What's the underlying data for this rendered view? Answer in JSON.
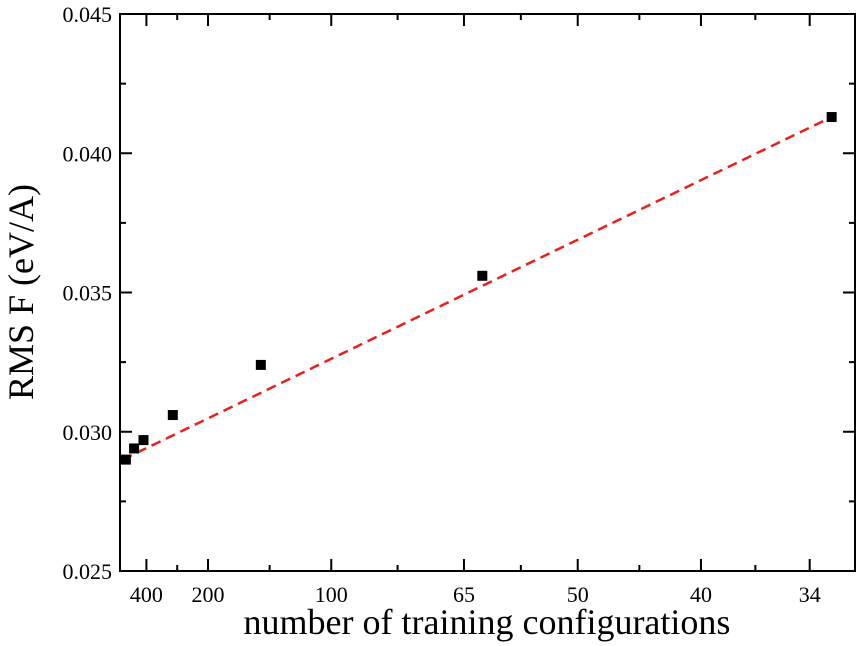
{
  "chart_data": {
    "type": "scatter",
    "xlabel": "number of training configurations",
    "ylabel": "RMS F (eV/A)",
    "x_scale": "reciprocal",
    "xlim": [
      700,
      32
    ],
    "ylim": [
      0.025,
      0.045
    ],
    "x_ticks": [
      400,
      200,
      100,
      65,
      50,
      40,
      34
    ],
    "y_ticks": [
      0.025,
      0.03,
      0.035,
      0.04,
      0.045
    ],
    "y_tick_labels": [
      "0.025",
      "0.030",
      "0.035",
      "0.040",
      "0.045"
    ],
    "grid": false,
    "series": [
      {
        "kind": "markers",
        "marker": "square",
        "color": "#000000",
        "x": [
          600,
          500,
          420,
          280,
          140,
          62,
          33
        ],
        "y": [
          0.029,
          0.0294,
          0.0297,
          0.0306,
          0.0324,
          0.0356,
          0.0413
        ]
      },
      {
        "kind": "fit-line",
        "style": "dashed",
        "color": "#e8201e",
        "x": [
          650,
          33
        ],
        "y": [
          0.029,
          0.0413
        ]
      }
    ]
  }
}
